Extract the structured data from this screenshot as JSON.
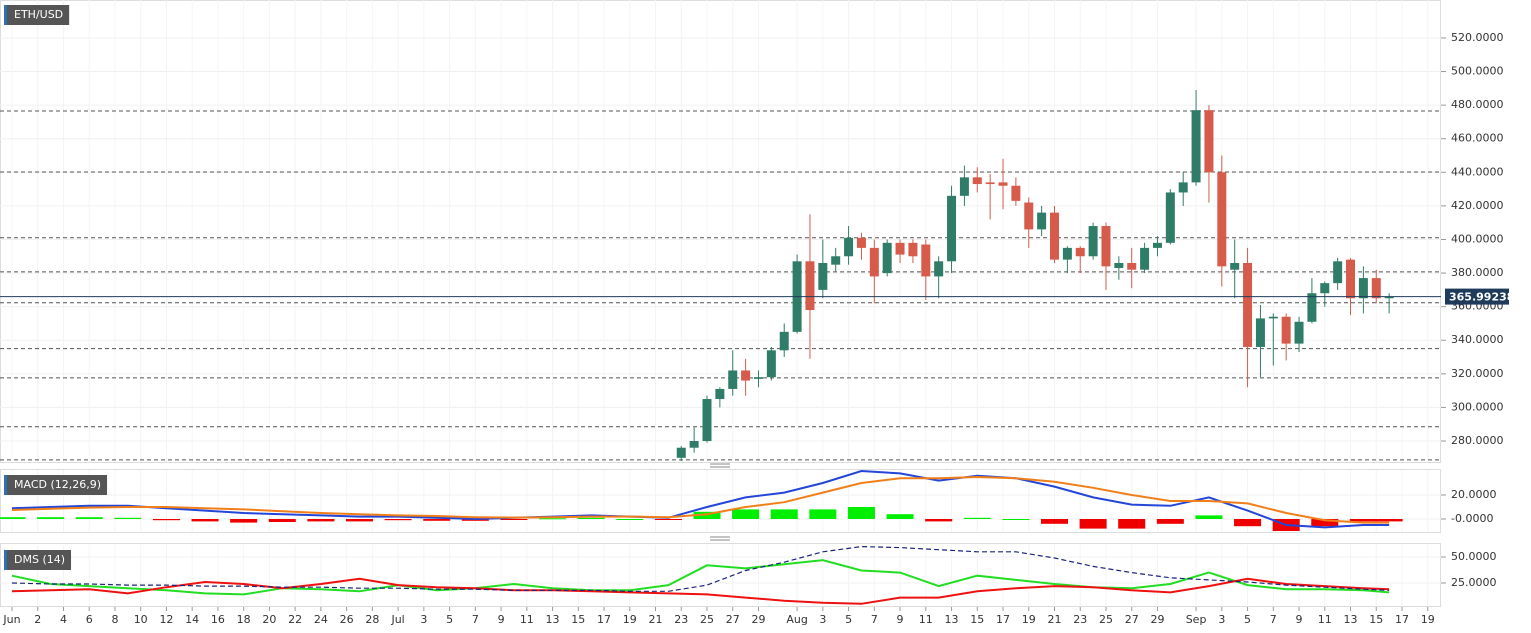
{
  "chart_data": [
    {
      "type": "candlestick",
      "title": "ETH/USD",
      "x": [
        52,
        53,
        54,
        55,
        56,
        57,
        58,
        59,
        60,
        61,
        62,
        63,
        64,
        65,
        66,
        67,
        68,
        69,
        70,
        71,
        72,
        73,
        74,
        75,
        76,
        77,
        78,
        79,
        80,
        81,
        82,
        83,
        84,
        85,
        86,
        87,
        88,
        89,
        90,
        91,
        92,
        93,
        94,
        95,
        96,
        97,
        98,
        99,
        100,
        101,
        102,
        103,
        104,
        105,
        106,
        107
      ],
      "open": [
        270,
        276,
        280,
        305,
        311,
        322,
        317,
        318,
        334,
        345,
        387,
        370,
        385,
        390,
        401,
        395,
        380,
        398,
        398,
        397,
        378,
        387,
        426,
        437,
        434,
        434,
        432,
        422,
        406,
        416,
        388,
        395,
        390,
        408,
        383,
        386,
        382,
        395,
        398,
        428,
        434,
        477,
        440,
        382,
        386,
        336,
        353,
        354,
        338,
        351,
        368,
        374,
        388,
        365,
        377,
        365
      ],
      "high": [
        277,
        288,
        307,
        312,
        334,
        329,
        322,
        336,
        350,
        391,
        415,
        400,
        395,
        408,
        404,
        400,
        400,
        400,
        400,
        400,
        390,
        432,
        444,
        443,
        439,
        448,
        437,
        425,
        420,
        420,
        396,
        396,
        410,
        410,
        390,
        395,
        398,
        402,
        430,
        440,
        489,
        480,
        450,
        400,
        395,
        361,
        356,
        356,
        354,
        377,
        375,
        389,
        389,
        384,
        382,
        368
      ],
      "low": [
        268,
        273,
        279,
        300,
        307,
        307,
        312,
        316,
        330,
        344,
        329,
        365,
        381,
        385,
        388,
        362,
        378,
        386,
        386,
        364,
        365,
        380,
        420,
        428,
        412,
        418,
        420,
        395,
        402,
        386,
        380,
        380,
        388,
        370,
        376,
        371,
        380,
        390,
        397,
        420,
        432,
        422,
        372,
        365,
        312,
        318,
        325,
        328,
        333,
        350,
        360,
        370,
        355,
        356,
        362,
        356
      ],
      "close": [
        276,
        280,
        305,
        311,
        322,
        316,
        318,
        334,
        345,
        387,
        358,
        386,
        390,
        401,
        395,
        378,
        398,
        391,
        390,
        378,
        387,
        426,
        437,
        433,
        433,
        432,
        423,
        406,
        416,
        388,
        395,
        390,
        408,
        384,
        386,
        382,
        395,
        398,
        428,
        434,
        477,
        440,
        384,
        386,
        336,
        353,
        354,
        338,
        351,
        368,
        374,
        387,
        365,
        377,
        365,
        366
      ],
      "up_color": "#2f7d68",
      "down_color": "#d65b4b",
      "levels": [
        476.5,
        440.2,
        401,
        380.7,
        362.3,
        335,
        317.6,
        288.5,
        268.8
      ],
      "last_price": 365.99238,
      "xlim": [
        -0.932,
        111.03
      ],
      "ylim": [
        267.5,
        542.6
      ],
      "yticks": [
        {
          "value": 280,
          "label": "280.0000"
        },
        {
          "value": 300,
          "label": "300.0000"
        },
        {
          "value": 320,
          "label": "320.0000"
        },
        {
          "value": 340,
          "label": "340.0000"
        },
        {
          "value": 360,
          "label": "360.0000"
        },
        {
          "value": 380,
          "label": "380.0000"
        },
        {
          "value": 400,
          "label": "400.0000"
        },
        {
          "value": 420,
          "label": "420.0000"
        },
        {
          "value": 440,
          "label": "440.0000"
        },
        {
          "value": 460,
          "label": "460.0000"
        },
        {
          "value": 480,
          "label": "480.0000"
        },
        {
          "value": 500,
          "label": "500.0000"
        },
        {
          "value": 520,
          "label": "520.0000"
        }
      ]
    },
    {
      "type": "macd",
      "title": "MACD (12,26,9)",
      "x": [
        0,
        3,
        6,
        9,
        12,
        15,
        18,
        21,
        24,
        27,
        30,
        33,
        36,
        39,
        42,
        45,
        48,
        51,
        54,
        57,
        60,
        63,
        66,
        69,
        72,
        75,
        78,
        81,
        84,
        87,
        90,
        93,
        96,
        99,
        102,
        105,
        107
      ],
      "series": [
        {
          "color": "#2346d8",
          "values": [
            9,
            10,
            11,
            11,
            9,
            7,
            5,
            4,
            3,
            2,
            2,
            1,
            0,
            1,
            2,
            3,
            2,
            1,
            10,
            18,
            22,
            30,
            40,
            38,
            32,
            36,
            34,
            27,
            18,
            12,
            11,
            18,
            7,
            -5,
            -7,
            -5,
            -5
          ]
        },
        {
          "color": "#f07f1a",
          "values": [
            7.5,
            8.5,
            9.5,
            10,
            10,
            9,
            8,
            6.5,
            5,
            4,
            3,
            2.5,
            1.5,
            1.2,
            1.4,
            2,
            2,
            1.5,
            4,
            10,
            14,
            22,
            30,
            34,
            34,
            35,
            34,
            31,
            26,
            20,
            15,
            15,
            13,
            5,
            -1,
            -3,
            -3
          ]
        }
      ],
      "histogram": [
        1.5,
        1.5,
        1.5,
        1,
        -1,
        -2,
        -3,
        -2.5,
        -2,
        -2,
        -1,
        -1.5,
        -1.5,
        -0.2,
        0.6,
        1,
        0,
        -0.5,
        6,
        8,
        8,
        8,
        10,
        4,
        -2,
        1,
        0,
        -4,
        -8,
        -8,
        -4,
        3,
        -6,
        -10,
        -6,
        -2,
        -2
      ],
      "up_color": "#00ee00",
      "down_color": "#ee0000",
      "xlim": [
        -0.932,
        111.03
      ],
      "ylim": [
        -10.83,
        40.83
      ],
      "yticks": [
        {
          "value": 0,
          "label": "-0.0000"
        },
        {
          "value": 20,
          "label": "20.0000"
        }
      ]
    },
    {
      "type": "line",
      "title": "DMS (14)",
      "x": [
        0,
        3,
        6,
        9,
        12,
        15,
        18,
        21,
        24,
        27,
        30,
        33,
        36,
        39,
        42,
        45,
        48,
        51,
        54,
        57,
        60,
        63,
        66,
        69,
        72,
        75,
        78,
        81,
        84,
        87,
        90,
        93,
        96,
        99,
        102,
        105,
        107
      ],
      "series": [
        {
          "color": "#22dd22",
          "values": [
            32,
            24,
            22,
            20,
            18,
            15,
            14,
            20,
            19,
            17,
            23,
            18,
            20,
            24,
            20,
            18,
            18,
            23,
            42,
            39,
            43,
            47,
            37,
            35,
            22,
            32,
            28,
            24,
            21,
            20,
            24,
            35,
            23,
            19,
            19,
            18,
            16
          ]
        },
        {
          "color": "#ee1111",
          "values": [
            17,
            18,
            19,
            15,
            21,
            26,
            24,
            20,
            24,
            29,
            23,
            21,
            20,
            18,
            18,
            17,
            16,
            15,
            14,
            11,
            8,
            6,
            5,
            11,
            11,
            17,
            20,
            22,
            21,
            18,
            16,
            22,
            29,
            24,
            22,
            20,
            19
          ]
        },
        {
          "color": "#1a237e",
          "dash": true,
          "values": [
            25,
            24,
            24,
            23,
            23,
            22,
            22,
            21,
            21,
            20,
            20,
            19,
            19,
            18,
            18,
            18,
            17,
            17,
            23,
            37,
            45,
            55,
            60,
            59,
            57,
            55,
            55,
            49,
            41,
            35,
            30,
            28,
            26,
            23,
            21,
            19,
            18
          ]
        }
      ],
      "xlim": [
        -0.932,
        111.03
      ],
      "ylim": [
        3.85,
        61.54
      ],
      "yticks": [
        {
          "value": 25,
          "label": "25.0000"
        },
        {
          "value": 50,
          "label": "50.0000"
        }
      ],
      "xticks": [
        {
          "value": 0,
          "label": "Jun"
        },
        2,
        4,
        6,
        8,
        10,
        12,
        14,
        16,
        18,
        20,
        22,
        24,
        26,
        28,
        {
          "value": 30,
          "label": "Jul"
        },
        {
          "value": 32,
          "label": "3"
        },
        {
          "value": 34,
          "label": "5"
        },
        {
          "value": 36,
          "label": "7"
        },
        {
          "value": 38,
          "label": "9"
        },
        {
          "value": 40,
          "label": "11"
        },
        {
          "value": 42,
          "label": "13"
        },
        {
          "value": 44,
          "label": "15"
        },
        {
          "value": 46,
          "label": "17"
        },
        {
          "value": 48,
          "label": "19"
        },
        {
          "value": 50,
          "label": "21"
        },
        {
          "value": 52,
          "label": "23"
        },
        {
          "value": 54,
          "label": "25"
        },
        {
          "value": 56,
          "label": "27"
        },
        {
          "value": 58,
          "label": "29"
        },
        {
          "value": 61,
          "label": "Aug"
        },
        {
          "value": 63,
          "label": "3"
        },
        {
          "value": 65,
          "label": "5"
        },
        {
          "value": 67,
          "label": "7"
        },
        {
          "value": 69,
          "label": "9"
        },
        {
          "value": 71,
          "label": "11"
        },
        {
          "value": 73,
          "label": "13"
        },
        {
          "value": 75,
          "label": "15"
        },
        {
          "value": 77,
          "label": "17"
        },
        {
          "value": 79,
          "label": "19"
        },
        {
          "value": 81,
          "label": "21"
        },
        {
          "value": 83,
          "label": "23"
        },
        {
          "value": 85,
          "label": "25"
        },
        {
          "value": 87,
          "label": "27"
        },
        {
          "value": 89,
          "label": "29"
        },
        {
          "value": 92,
          "label": "Sep"
        },
        {
          "value": 94,
          "label": "3"
        },
        {
          "value": 96,
          "label": "5"
        },
        {
          "value": 98,
          "label": "7"
        },
        {
          "value": 100,
          "label": "9"
        },
        {
          "value": 102,
          "label": "11"
        },
        {
          "value": 104,
          "label": "13"
        },
        {
          "value": 106,
          "label": "15"
        },
        {
          "value": 108,
          "label": "17"
        },
        {
          "value": 110,
          "label": "19"
        }
      ]
    }
  ]
}
